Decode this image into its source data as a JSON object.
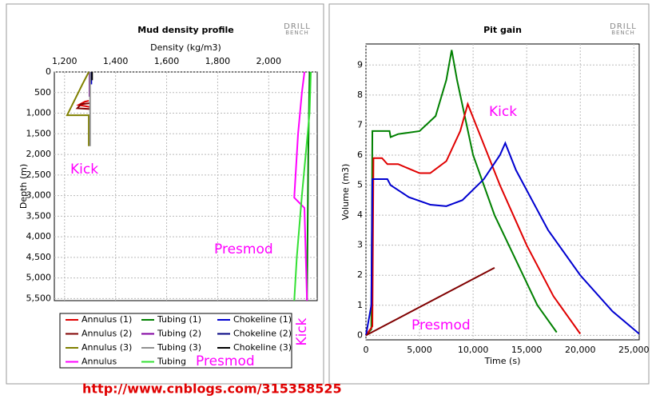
{
  "logo_lines": [
    "DRILL",
    "BENCH"
  ],
  "footer": "http://www.cnblogs.com/315358525",
  "chart_data": [
    {
      "type": "line",
      "title": "Mud density profile",
      "xlabel": "Density (kg/m3)",
      "ylabel": "Depth (m)",
      "xlim": [
        1160,
        2190
      ],
      "ylim": [
        5550,
        0
      ],
      "xticks": [
        {
          "value": 1200,
          "label": "1,200"
        },
        {
          "value": 1400,
          "label": "1,400"
        },
        {
          "value": 1600,
          "label": "1,600"
        },
        {
          "value": 1800,
          "label": "1,800"
        },
        {
          "value": 2000,
          "label": "2,000"
        }
      ],
      "yticks": [
        0,
        500,
        {
          "value": 1000,
          "label": "1,000"
        },
        {
          "value": 1500,
          "label": "1,500"
        },
        {
          "value": 2000,
          "label": "2,000"
        },
        {
          "value": 2500,
          "label": "2,500"
        },
        {
          "value": 3000,
          "label": "3,000"
        },
        {
          "value": 3500,
          "label": "3,500"
        },
        {
          "value": 4000,
          "label": "4,000"
        },
        {
          "value": 4500,
          "label": "4,500"
        },
        {
          "value": 5000,
          "label": "5,000"
        },
        {
          "value": 5500,
          "label": "5,500"
        }
      ],
      "grid": true,
      "x_axis_position": "top",
      "legend": "bottom",
      "annotations": [
        "Kick",
        "Presmod",
        "Kick",
        "Presmod"
      ],
      "series": [
        {
          "name": "Annulus (1)",
          "color": "#e00000",
          "x": [
            1295,
            1280,
            1255,
            1300
          ],
          "values": [
            700,
            720,
            800,
            850
          ]
        },
        {
          "name": "Tubing (1)",
          "color": "#008000",
          "x": [
            2160,
            2155,
            2150
          ],
          "values": [
            0,
            2000,
            5550
          ]
        },
        {
          "name": "Chokeline (1)",
          "color": "#0000d0",
          "x": [
            1305,
            1305
          ],
          "values": [
            0,
            300
          ]
        },
        {
          "name": "Annulus (2)",
          "color": "#800000",
          "x": [
            1300,
            1265,
            1250,
            1300
          ],
          "values": [
            760,
            780,
            880,
            900
          ]
        },
        {
          "name": "Tubing (2)",
          "color": "#8000a0",
          "x": [
            1298,
            1298
          ],
          "values": [
            0,
            600
          ]
        },
        {
          "name": "Chokeline (2)",
          "color": "#000080",
          "x": [
            1302,
            1302
          ],
          "values": [
            0,
            250
          ]
        },
        {
          "name": "Annulus (3)",
          "color": "#808000",
          "x": [
            1295,
            1270,
            1210,
            1295,
            1295
          ],
          "values": [
            0,
            300,
            1050,
            1050,
            1800
          ]
        },
        {
          "name": "Tubing (3)",
          "color": "#909090",
          "x": [
            1300,
            1300
          ],
          "values": [
            0,
            1800
          ]
        },
        {
          "name": "Chokeline (3)",
          "color": "#000000",
          "x": [
            1308,
            1308
          ],
          "values": [
            0,
            200
          ]
        },
        {
          "name": "Annulus",
          "color": "#ff00ff",
          "x": [
            2140,
            2130,
            2115,
            2100,
            2140,
            2150
          ],
          "values": [
            0,
            500,
            1500,
            3050,
            3300,
            5550
          ]
        },
        {
          "name": "Tubing",
          "color": "#33e033",
          "x": [
            2165,
            2160,
            2130,
            2110,
            2100
          ],
          "values": [
            0,
            1000,
            3000,
            4500,
            5550
          ]
        }
      ]
    },
    {
      "type": "line",
      "title": "Pit gain",
      "xlabel": "Time (s)",
      "ylabel": "Volume (m3)",
      "xlim": [
        0,
        25500
      ],
      "ylim": [
        -0.15,
        9.7
      ],
      "xticks": [
        0,
        {
          "value": 5000,
          "label": "5,000"
        },
        {
          "value": 10000,
          "label": "10,000"
        },
        {
          "value": 15000,
          "label": "15,000"
        },
        {
          "value": 20000,
          "label": "20,000"
        },
        {
          "value": 25000,
          "label": "25,000"
        }
      ],
      "yticks": [
        0,
        1,
        2,
        3,
        4,
        5,
        6,
        7,
        8,
        9
      ],
      "grid": true,
      "x_axis_position": "bottom",
      "annotations": [
        "Kick",
        "Presmod"
      ],
      "series": [
        {
          "color": "#008000",
          "x": [
            0,
            500,
            600,
            2200,
            2300,
            3000,
            5000,
            6500,
            7500,
            8000,
            8500,
            10000,
            12000,
            14000,
            16000,
            17800
          ],
          "values": [
            0,
            0.2,
            6.8,
            6.8,
            6.6,
            6.7,
            6.8,
            7.3,
            8.5,
            9.5,
            8.5,
            6,
            4,
            2.5,
            1,
            0.1
          ]
        },
        {
          "color": "#e00000",
          "x": [
            0,
            600,
            700,
            1500,
            2000,
            3000,
            5000,
            6000,
            7500,
            8800,
            9500,
            10500,
            12500,
            15000,
            17500,
            20000
          ],
          "values": [
            0,
            0.3,
            5.9,
            5.9,
            5.7,
            5.7,
            5.4,
            5.4,
            5.8,
            6.8,
            7.7,
            6.8,
            5,
            3,
            1.3,
            0.05
          ]
        },
        {
          "color": "#0000d0",
          "x": [
            0,
            500,
            600,
            2000,
            2300,
            4000,
            6000,
            7500,
            9000,
            11000,
            12500,
            13000,
            14000,
            17000,
            20000,
            23000,
            25500
          ],
          "values": [
            0,
            1,
            5.2,
            5.2,
            5,
            4.6,
            4.35,
            4.3,
            4.5,
            5.2,
            6,
            6.4,
            5.5,
            3.5,
            2,
            0.8,
            0.05
          ]
        },
        {
          "color": "#800000",
          "x": [
            0,
            12000
          ],
          "values": [
            0,
            2.25
          ]
        }
      ]
    }
  ]
}
